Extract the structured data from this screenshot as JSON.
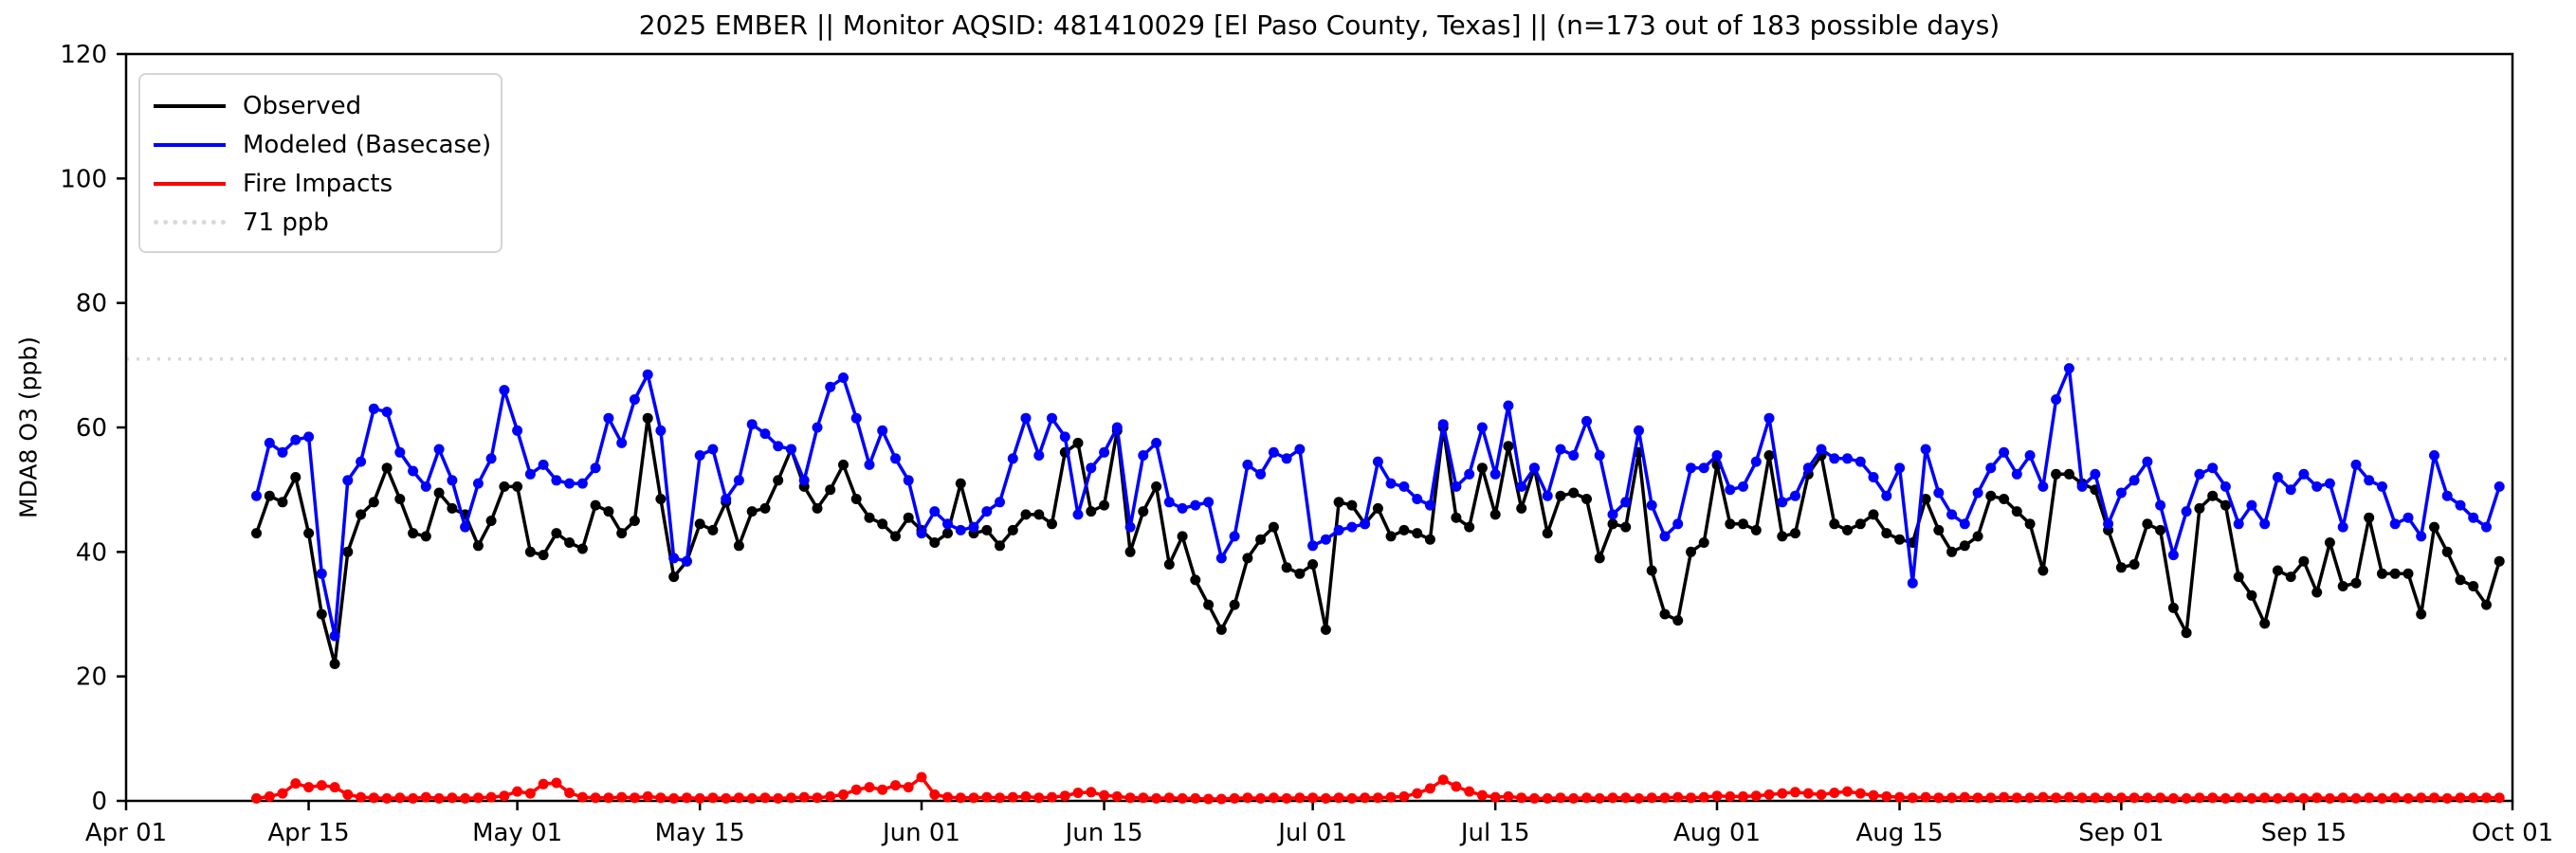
{
  "title": "2025 EMBER || Monitor AQSID: 481410029 [El Paso County, Texas] || (n=173 out of 183 possible days)",
  "colors": {
    "observed": "#000000",
    "modeled": "#0000ff",
    "fire": "#ff0000",
    "threshold": "#d9d9d9",
    "axis": "#000000",
    "background": "#ffffff"
  },
  "legend": {
    "items": [
      {
        "label": "Observed",
        "style": "solid-black"
      },
      {
        "label": "Modeled (Basecase)",
        "style": "solid-blue"
      },
      {
        "label": "Fire Impacts",
        "style": "solid-red"
      },
      {
        "label": "71 ppb",
        "style": "dotted-gray"
      }
    ]
  },
  "chart_data": {
    "type": "line",
    "title": "2025 EMBER || Monitor AQSID: 481410029 [El Paso County, Texas] || (n=173 out of 183 possible days)",
    "ylabel": "MDA8 O3 (ppb)",
    "xlabel": "",
    "ylim": [
      0,
      120
    ],
    "y_ticks": [
      0,
      20,
      40,
      60,
      80,
      100,
      120
    ],
    "x_axis_span_days": 183,
    "x_ticks": [
      {
        "label": "Apr 01",
        "day": 0
      },
      {
        "label": "Apr 15",
        "day": 14
      },
      {
        "label": "May 01",
        "day": 30
      },
      {
        "label": "May 15",
        "day": 44
      },
      {
        "label": "Jun 01",
        "day": 61
      },
      {
        "label": "Jun 15",
        "day": 75
      },
      {
        "label": "Jul 01",
        "day": 91
      },
      {
        "label": "Jul 15",
        "day": 105
      },
      {
        "label": "Aug 01",
        "day": 122
      },
      {
        "label": "Aug 15",
        "day": 136
      },
      {
        "label": "Sep 01",
        "day": 153
      },
      {
        "label": "Sep 15",
        "day": 167
      },
      {
        "label": "Oct 01",
        "day": 183
      }
    ],
    "threshold_line": {
      "value": 71,
      "label": "71 ppb"
    },
    "grid": false,
    "legend_position": "upper left",
    "data_start_label": "Apr 11",
    "data_end_label": "Sep 30",
    "data_start_day_offset": 10,
    "n_days_shown": 173,
    "n_days_possible": 183,
    "series": [
      {
        "name": "Observed",
        "color": "#000000",
        "values": [
          43,
          49,
          48,
          52,
          43,
          30,
          22,
          40,
          46,
          48,
          53.5,
          48.5,
          43,
          42.5,
          49.5,
          47,
          46,
          41,
          45,
          50.5,
          50.5,
          40,
          39.5,
          43,
          41.5,
          40.5,
          47.5,
          46.5,
          43,
          45,
          61.5,
          48.5,
          36,
          38.5,
          44.5,
          43.5,
          48,
          41,
          46.5,
          47,
          51.5,
          56.5,
          50.5,
          47,
          50,
          54,
          48.5,
          45.5,
          44.5,
          42.5,
          45.5,
          43.5,
          41.5,
          43,
          51,
          43,
          43.5,
          41,
          43.5,
          46,
          46,
          44.5,
          56,
          57.5,
          46.5,
          47.5,
          59.5,
          40,
          46.5,
          50.5,
          38,
          42.5,
          35.5,
          31.5,
          27.5,
          31.5,
          39,
          42,
          44,
          37.5,
          36.5,
          38,
          27.5,
          48,
          47.5,
          44.5,
          47,
          42.5,
          43.5,
          43,
          42,
          60,
          45.5,
          44,
          53.5,
          46,
          57,
          47,
          53.5,
          43,
          49,
          49.5,
          48.5,
          39,
          44.5,
          44,
          56,
          37,
          30,
          29,
          40,
          41.5,
          54,
          44.5,
          44.5,
          43.5,
          55.5,
          42.5,
          43,
          52.5,
          55.5,
          44.5,
          43.5,
          44.5,
          46,
          43,
          42,
          41.5,
          48.5,
          43.5,
          40,
          41,
          42.5,
          49,
          48.5,
          46.5,
          44.5,
          37,
          52.5,
          52.5,
          51,
          50,
          43.5,
          37.5,
          38,
          44.5,
          43.5,
          31,
          27,
          47,
          49,
          47.5,
          36,
          33,
          28.5,
          37,
          36,
          38.5,
          33.5,
          41.5,
          34.5,
          35,
          45.5,
          36.5,
          36.5,
          36.5,
          30,
          44,
          40,
          35.5,
          34.5,
          31.5,
          38.5
        ]
      },
      {
        "name": "Modeled (Basecase)",
        "color": "#0000ff",
        "values": [
          49,
          57.5,
          56,
          58,
          58.5,
          36.5,
          26.5,
          51.5,
          54.5,
          63,
          62.5,
          56,
          53,
          50.5,
          56.5,
          51.5,
          44,
          51,
          55,
          66,
          59.5,
          52.5,
          54,
          51.5,
          51,
          51,
          53.5,
          61.5,
          57.5,
          64.5,
          68.5,
          59.5,
          39,
          38.5,
          55.5,
          56.5,
          48.5,
          51.5,
          60.5,
          59,
          57,
          56.5,
          51.5,
          60,
          66.5,
          68,
          61.5,
          54,
          59.5,
          55,
          51.5,
          43,
          46.5,
          44.5,
          43.5,
          44,
          46.5,
          48,
          55,
          61.5,
          55.5,
          61.5,
          58.5,
          46,
          53.5,
          56,
          60,
          44,
          55.5,
          57.5,
          48,
          47,
          47.5,
          48,
          39,
          42.5,
          54,
          52.5,
          56,
          55,
          56.5,
          41,
          42,
          43.5,
          44,
          44.5,
          54.5,
          51,
          50.5,
          48.5,
          47.5,
          60.5,
          50.5,
          52.5,
          60,
          52.5,
          63.5,
          50.5,
          53.5,
          49,
          56.5,
          55.5,
          61,
          55.5,
          46,
          48,
          59.5,
          47.5,
          42.5,
          44.5,
          53.5,
          53.5,
          55.5,
          50,
          50.5,
          54.5,
          61.5,
          48,
          49,
          53.5,
          56.5,
          55,
          55,
          54.5,
          52,
          49,
          53.5,
          35,
          56.5,
          49.5,
          46,
          44.5,
          49.5,
          53.5,
          56,
          52.5,
          55.5,
          50.5,
          64.5,
          69.5,
          50.5,
          52.5,
          44.5,
          49.5,
          51.5,
          54.5,
          47.5,
          39.5,
          46.5,
          52.5,
          53.5,
          50.5,
          44.5,
          47.5,
          44.5,
          52,
          50,
          52.5,
          50.5,
          51,
          44,
          54,
          51.5,
          50.5,
          44.5,
          45.5,
          42.5,
          55.5,
          49,
          47.5,
          45.5,
          44,
          50.5
        ]
      },
      {
        "name": "Fire Impacts",
        "color": "#ff0000",
        "values": [
          0.4,
          0.7,
          1.2,
          2.8,
          2.2,
          2.5,
          2.2,
          1.0,
          0.6,
          0.5,
          0.4,
          0.5,
          0.4,
          0.6,
          0.4,
          0.5,
          0.4,
          0.5,
          0.6,
          0.8,
          1.5,
          1.2,
          2.7,
          2.9,
          1.3,
          0.6,
          0.5,
          0.5,
          0.6,
          0.5,
          0.7,
          0.5,
          0.4,
          0.5,
          0.4,
          0.5,
          0.4,
          0.5,
          0.4,
          0.5,
          0.4,
          0.5,
          0.6,
          0.5,
          0.7,
          1.0,
          1.8,
          2.2,
          1.8,
          2.5,
          2.2,
          3.8,
          1.0,
          0.6,
          0.5,
          0.5,
          0.6,
          0.5,
          0.6,
          0.7,
          0.5,
          0.6,
          0.8,
          1.3,
          1.4,
          0.9,
          0.7,
          0.5,
          0.5,
          0.4,
          0.5,
          0.4,
          0.4,
          0.3,
          0.3,
          0.4,
          0.5,
          0.4,
          0.5,
          0.4,
          0.5,
          0.5,
          0.4,
          0.5,
          0.4,
          0.5,
          0.5,
          0.6,
          0.7,
          1.2,
          2.0,
          3.4,
          2.3,
          1.5,
          0.9,
          0.6,
          0.7,
          0.5,
          0.4,
          0.4,
          0.5,
          0.4,
          0.5,
          0.4,
          0.5,
          0.5,
          0.4,
          0.5,
          0.5,
          0.6,
          0.5,
          0.6,
          0.8,
          0.7,
          0.7,
          0.8,
          1.0,
          1.2,
          1.4,
          1.2,
          1.0,
          1.3,
          1.5,
          1.2,
          0.9,
          0.7,
          0.6,
          0.5,
          0.6,
          0.5,
          0.5,
          0.6,
          0.5,
          0.5,
          0.6,
          0.5,
          0.5,
          0.6,
          0.5,
          0.6,
          0.5,
          0.5,
          0.5,
          0.5,
          0.5,
          0.5,
          0.5,
          0.4,
          0.4,
          0.5,
          0.5,
          0.4,
          0.5,
          0.4,
          0.5,
          0.4,
          0.5,
          0.4,
          0.5,
          0.4,
          0.5,
          0.4,
          0.5,
          0.4,
          0.5,
          0.4,
          0.5,
          0.5,
          0.4,
          0.5,
          0.5,
          0.5,
          0.5
        ]
      }
    ]
  }
}
